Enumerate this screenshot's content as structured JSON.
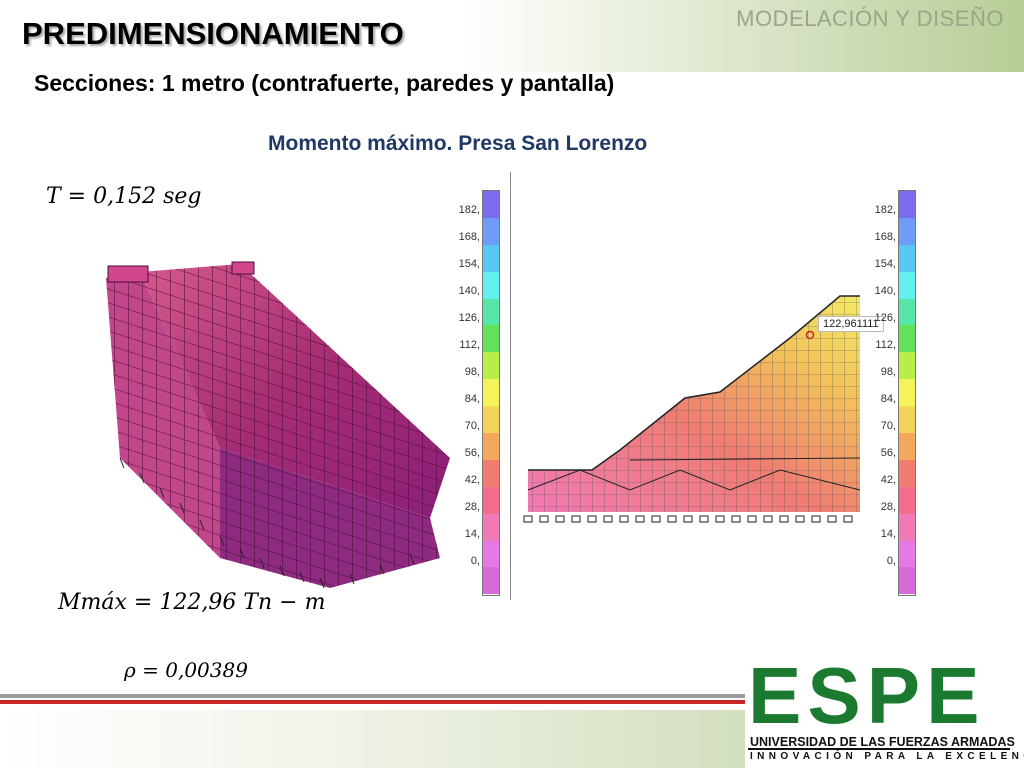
{
  "header": {
    "section_tag": "MODELACIÓN Y DISEÑO",
    "title": "PREDIMENSIONAMIENTO",
    "subtitle": "Secciones: 1 metro (contrafuerte, paredes y pantalla)"
  },
  "figure": {
    "caption": "Momento máximo. Presa San Lorenzo",
    "annotation": "122,961111"
  },
  "equations": {
    "period": "T = 0,152 seg",
    "moment": "Mmáx = 122,96 Tn − m",
    "rho": "ρ = 0,00389"
  },
  "legend": {
    "ticks": [
      "182,",
      "168,",
      "154,",
      "140,",
      "126,",
      "112,",
      "98,",
      "84,",
      "70,",
      "56,",
      "42,",
      "28,",
      "14,",
      "0,"
    ],
    "colors": [
      "#7b6cf0",
      "#6f9cf5",
      "#58c8f3",
      "#62f0ef",
      "#57e6a6",
      "#62e258",
      "#b7ee4a",
      "#f3f35a",
      "#f3d35a",
      "#f3a85c",
      "#f07c72",
      "#f36b8d",
      "#f07ab6",
      "#e57ae2",
      "#d66ad9"
    ]
  },
  "logo": {
    "wordmark": "ESPE",
    "university": "UNIVERSIDAD DE LAS FUERZAS ARMADAS",
    "motto": "INNOVACIÓN PARA LA EXCELENCIA",
    "brand_color": "#1b7a30"
  }
}
